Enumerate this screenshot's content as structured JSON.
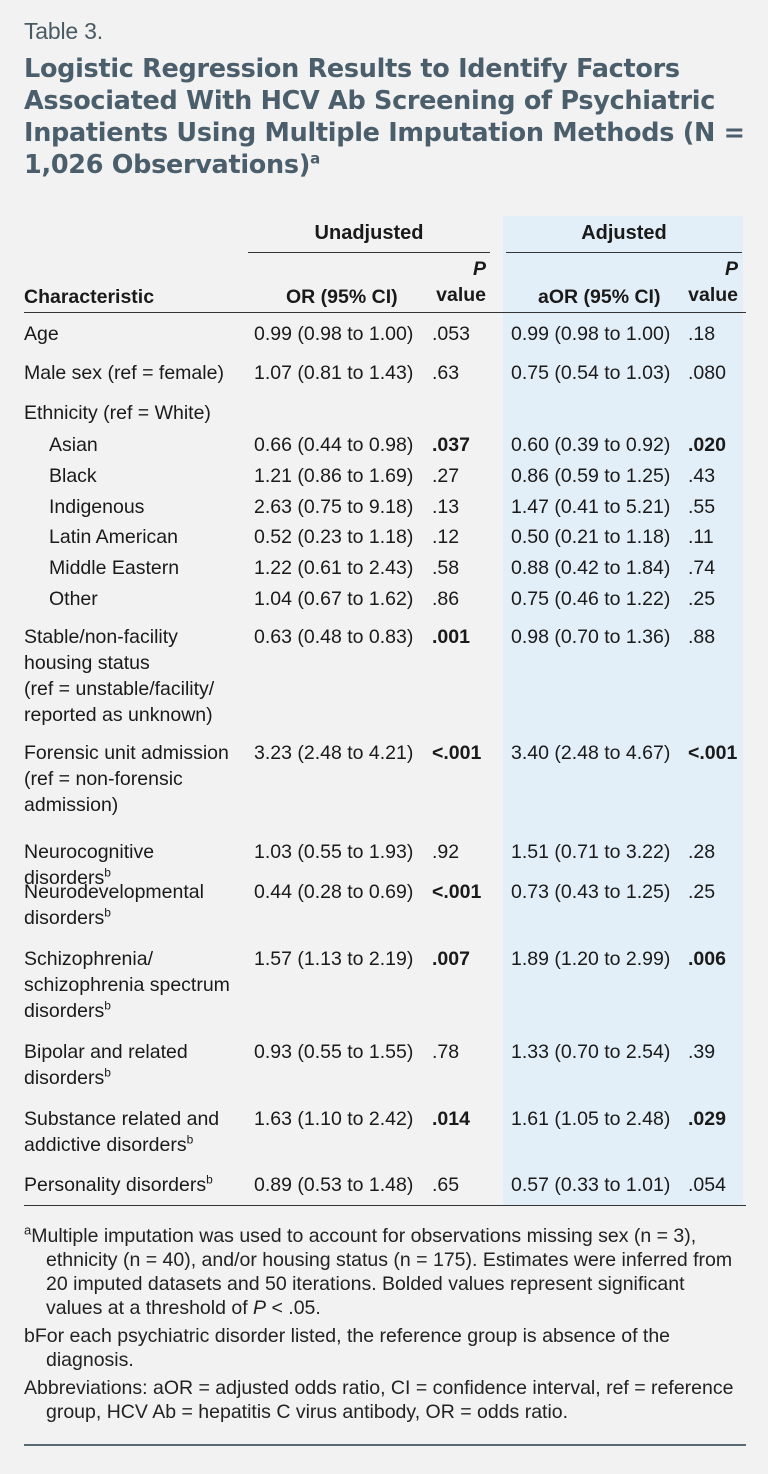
{
  "table_label": "Table 3.",
  "title": "Logistic Regression Results to Identify Factors Associated With HCV Ab Screening of Psychiatric Inpatients Using Multiple Imputation Methods (N = 1,026 Observations)",
  "title_sup": "a",
  "headers": {
    "unadjusted": "Unadjusted",
    "adjusted": "Adjusted",
    "characteristic": "Characteristic",
    "or": "OR (95% CI)",
    "p_italic": "P",
    "p_value": "value",
    "aor": "aOR (95% CI)"
  },
  "rows": [
    {
      "label": "Age",
      "or": "0.99 (0.98 to 1.00)",
      "p1": ".053",
      "aor": "0.99 (0.98 to 1.00)",
      "p2": ".18"
    },
    {
      "label": "Male sex (ref = female)",
      "or": "1.07 (0.81 to 1.43)",
      "p1": ".63",
      "aor": "0.75 (0.54 to 1.03)",
      "p2": ".080"
    },
    {
      "label": "Ethnicity (ref = White)"
    },
    {
      "label": "Asian",
      "or": "0.66 (0.44 to 0.98)",
      "p1": ".037",
      "aor": "0.60 (0.39 to 0.92)",
      "p2": ".020"
    },
    {
      "label": "Black",
      "or": "1.21 (0.86 to 1.69)",
      "p1": ".27",
      "aor": "0.86 (0.59 to 1.25)",
      "p2": ".43"
    },
    {
      "label": "Indigenous",
      "or": "2.63 (0.75 to 9.18)",
      "p1": ".13",
      "aor": "1.47 (0.41 to 5.21)",
      "p2": ".55"
    },
    {
      "label": "Latin American",
      "or": "0.52 (0.23 to 1.18)",
      "p1": ".12",
      "aor": "0.50 (0.21 to 1.18)",
      "p2": ".11"
    },
    {
      "label": "Middle Eastern",
      "or": "1.22 (0.61 to 2.43)",
      "p1": ".58",
      "aor": "0.88 (0.42 to 1.84)",
      "p2": ".74"
    },
    {
      "label": "Other",
      "or": "1.04 (0.67 to 1.62)",
      "p1": ".86",
      "aor": "0.75 (0.46 to 1.22)",
      "p2": ".25"
    },
    {
      "label_lines": [
        "Stable/non-facility",
        "housing status",
        "(ref = unstable/facility/",
        "reported as unknown)"
      ],
      "or": "0.63 (0.48 to 0.83)",
      "p1": ".001",
      "aor": "0.98 (0.70 to 1.36)",
      "p2": ".88"
    },
    {
      "label_lines": [
        "Forensic unit admission",
        "(ref = non-forensic",
        "admission)"
      ],
      "or": "3.23 (2.48 to 4.21)",
      "p1": "<.001",
      "aor": "3.40 (2.48 to 4.67)",
      "p2": "<.001"
    },
    {
      "label_lines": [
        "Neurocognitive disorders"
      ],
      "sup": "b",
      "or": "1.03 (0.55 to 1.93)",
      "p1": ".92",
      "aor": "1.51 (0.71 to 3.22)",
      "p2": ".28"
    },
    {
      "label_lines": [
        "Neurodevelopmental",
        "disorders"
      ],
      "sup": "b",
      "or": "0.44 (0.28 to 0.69)",
      "p1": "<.001",
      "aor": "0.73 (0.43 to 1.25)",
      "p2": ".25"
    },
    {
      "label_lines": [
        "Schizophrenia/",
        "schizophrenia spectrum",
        "disorders"
      ],
      "sup": "b",
      "or": "1.57 (1.13 to 2.19)",
      "p1": ".007",
      "aor": "1.89 (1.20 to 2.99)",
      "p2": ".006"
    },
    {
      "label_lines": [
        "Bipolar and related",
        "disorders"
      ],
      "sup": "b",
      "or": "0.93 (0.55 to 1.55)",
      "p1": ".78",
      "aor": "1.33 (0.70 to 2.54)",
      "p2": ".39"
    },
    {
      "label_lines": [
        "Substance related and",
        "addictive disorders"
      ],
      "sup": "b",
      "or": "1.63 (1.10 to 2.42)",
      "p1": ".014",
      "aor": "1.61 (1.05 to 2.48)",
      "p2": ".029"
    },
    {
      "label_lines": [
        "Personality disorders"
      ],
      "sup": "b",
      "or": "0.89 (0.53 to 1.48)",
      "p1": ".65",
      "aor": "0.57 (0.33 to 1.01)",
      "p2": ".054"
    }
  ],
  "notes": {
    "a_marker": "a",
    "a_text_1": "Multiple imputation was used to account for observations missing sex (n = 3), ethnicity (n = 40), and/or housing status (n = 175). Estimates were inferred from 20 imputed datasets and 50 iterations. Bolded values represent significant values at a threshold of ",
    "a_p": "P",
    "a_text_2": " < .05.",
    "b_marker": "b",
    "b_text": "For each psychiatric disorder listed, the reference group is absence of the diagnosis.",
    "abbrev": "Abbreviations: aOR = adjusted odds ratio, CI = confidence interval, ref = reference group, HCV Ab = hepatitis C virus antibody, OR = odds ratio."
  }
}
